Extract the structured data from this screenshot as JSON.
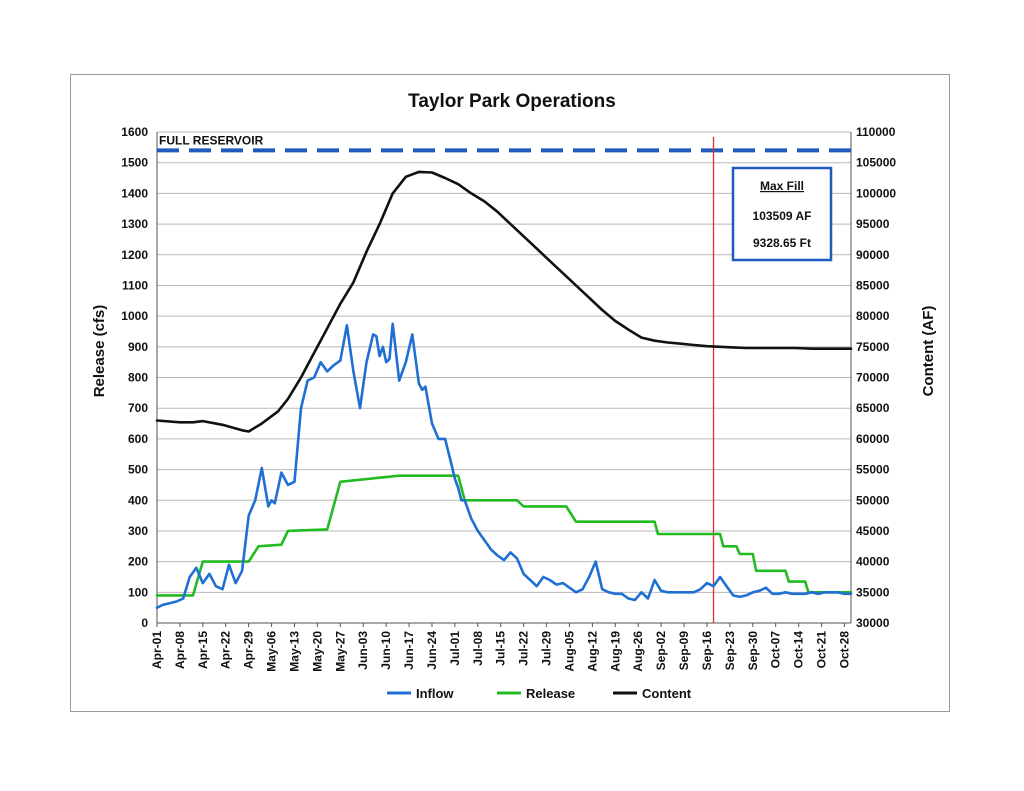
{
  "chart_data": {
    "type": "line",
    "title": "Taylor Park Operations",
    "ylabel": "Release (cfs)",
    "y2label": "Content (AF)",
    "ylim": [
      0,
      1600
    ],
    "y2lim": [
      30000,
      110000
    ],
    "yticks": [
      0,
      100,
      200,
      300,
      400,
      500,
      600,
      700,
      800,
      900,
      1000,
      1100,
      1200,
      1300,
      1400,
      1500,
      1600
    ],
    "y2ticks": [
      30000,
      35000,
      40000,
      45000,
      50000,
      55000,
      60000,
      65000,
      70000,
      75000,
      80000,
      85000,
      90000,
      95000,
      100000,
      105000,
      110000
    ],
    "xticks": [
      "Apr-01",
      "Apr-08",
      "Apr-15",
      "Apr-22",
      "Apr-29",
      "May-06",
      "May-13",
      "May-20",
      "May-27",
      "Jun-03",
      "Jun-10",
      "Jun-17",
      "Jun-24",
      "Jul-01",
      "Jul-08",
      "Jul-15",
      "Jul-22",
      "Jul-29",
      "Aug-05",
      "Aug-12",
      "Aug-19",
      "Aug-26",
      "Sep-02",
      "Sep-09",
      "Sep-16",
      "Sep-23",
      "Sep-30",
      "Oct-07",
      "Oct-14",
      "Oct-21",
      "Oct-28"
    ],
    "grid": true,
    "legend": "bottom",
    "series": [
      {
        "name": "Inflow",
        "axis": "left",
        "color": "#1f6fd4",
        "x_days": [
          0,
          2,
          4,
          6,
          8,
          10,
          12,
          14,
          16,
          18,
          20,
          22,
          24,
          26,
          28,
          30,
          32,
          34,
          35,
          36,
          38,
          40,
          42,
          44,
          46,
          48,
          50,
          52,
          54,
          56,
          58,
          60,
          62,
          64,
          66,
          67,
          68,
          69,
          70,
          71,
          72,
          74,
          76,
          78,
          80,
          81,
          82,
          84,
          86,
          88,
          90,
          91,
          92,
          93,
          94,
          95,
          96,
          98,
          100,
          102,
          104,
          106,
          108,
          110,
          112,
          114,
          116,
          118,
          120,
          122,
          124,
          126,
          128,
          130,
          132,
          134,
          136,
          138,
          140,
          142,
          144,
          146,
          148,
          150,
          152,
          154,
          156,
          158,
          160,
          162,
          164,
          166,
          168,
          170,
          172,
          174,
          176,
          178,
          180,
          182,
          184,
          186,
          188,
          190,
          192,
          194,
          196,
          198,
          200,
          202,
          204,
          206,
          208,
          210,
          212
        ],
        "values": [
          50,
          60,
          65,
          70,
          80,
          150,
          180,
          130,
          160,
          120,
          110,
          190,
          130,
          170,
          350,
          400,
          505,
          380,
          400,
          390,
          490,
          450,
          460,
          700,
          790,
          800,
          850,
          820,
          840,
          855,
          970,
          820,
          700,
          850,
          940,
          935,
          870,
          900,
          850,
          860,
          975,
          790,
          850,
          940,
          780,
          760,
          770,
          650,
          600,
          600,
          515,
          470,
          440,
          400,
          400,
          370,
          340,
          300,
          270,
          240,
          220,
          205,
          230,
          210,
          160,
          140,
          120,
          150,
          140,
          125,
          130,
          115,
          100,
          110,
          150,
          200,
          110,
          100,
          95,
          95,
          80,
          75,
          100,
          80,
          140,
          105,
          100,
          100,
          100,
          100,
          100,
          110,
          130,
          120,
          150,
          120,
          90,
          85,
          90,
          100,
          105,
          115,
          95,
          95,
          100,
          95,
          95,
          95,
          100,
          95,
          100,
          100,
          100,
          95,
          95
        ]
      },
      {
        "name": "Release",
        "axis": "left",
        "color": "#22bb22",
        "x_days": [
          0,
          11,
          14,
          28,
          31,
          38,
          40,
          52,
          56,
          74,
          92,
          94,
          110,
          112,
          125,
          128,
          152,
          153,
          172,
          173,
          177,
          178,
          182,
          183,
          192,
          193,
          198,
          199,
          212
        ],
        "values": [
          90,
          90,
          200,
          200,
          250,
          255,
          300,
          305,
          460,
          480,
          480,
          400,
          400,
          380,
          380,
          330,
          330,
          290,
          290,
          250,
          250,
          225,
          225,
          170,
          170,
          135,
          135,
          100,
          100
        ]
      },
      {
        "name": "Content",
        "axis": "right",
        "color": "#111111",
        "x_days": [
          0,
          7,
          11,
          14,
          20,
          26,
          28,
          32,
          37,
          40,
          44,
          48,
          52,
          56,
          60,
          64,
          68,
          72,
          76,
          80,
          84,
          88,
          92,
          96,
          100,
          104,
          108,
          112,
          116,
          120,
          124,
          128,
          132,
          136,
          140,
          144,
          148,
          152,
          156,
          160,
          164,
          168,
          172,
          176,
          180,
          185,
          190,
          195,
          200,
          206,
          212
        ],
        "values": [
          63000,
          62700,
          62700,
          62900,
          62300,
          61400,
          61200,
          62500,
          64500,
          66500,
          70000,
          74000,
          78000,
          82000,
          85500,
          90500,
          95000,
          100000,
          102700,
          103500,
          103400,
          102500,
          101500,
          100000,
          98700,
          97000,
          95000,
          93000,
          91000,
          89000,
          87000,
          85000,
          83000,
          81000,
          79200,
          77800,
          76500,
          76000,
          75700,
          75500,
          75300,
          75100,
          75000,
          74900,
          74800,
          74800,
          74800,
          74800,
          74700,
          74700,
          74700
        ]
      }
    ],
    "reference_lines": [
      {
        "kind": "horizontal",
        "label": "FULL RESERVOIR",
        "axis": "right",
        "value": 107000,
        "color": "#1f5bbf",
        "style": "dashed"
      },
      {
        "kind": "vertical",
        "at_day": 170,
        "color": "#e03030"
      }
    ],
    "annotation_box": {
      "title": "Max Fill",
      "line1": "103509 AF",
      "line2": "9328.65 Ft",
      "border_color": "#1f5bbf"
    }
  }
}
